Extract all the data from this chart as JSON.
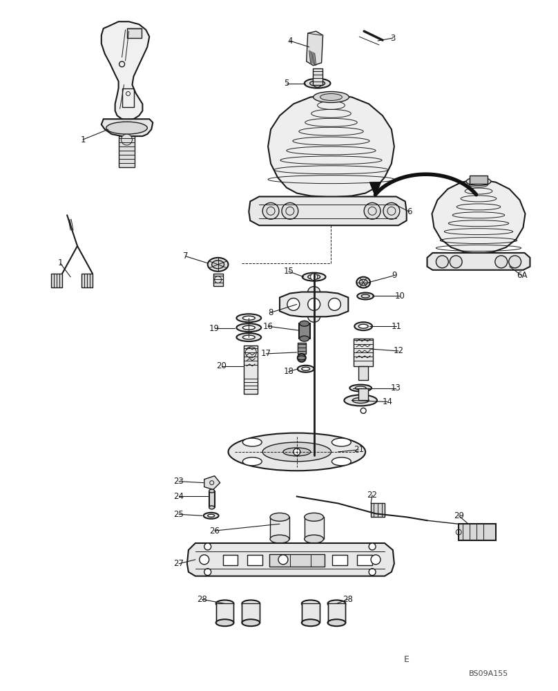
{
  "bg_color": "#ffffff",
  "line_color": "#1a1a1a",
  "figure_code": "BS09A155",
  "page_letter": "E",
  "figsize": [
    8.08,
    10.0
  ],
  "dpi": 100
}
